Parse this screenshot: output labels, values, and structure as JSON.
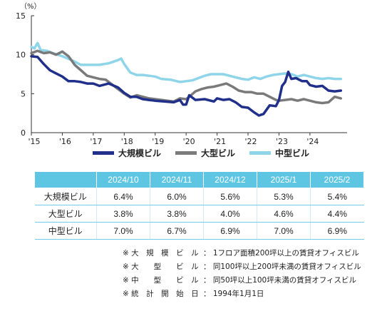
{
  "chart_data": {
    "type": "line",
    "unit_label": "（%）",
    "ylim": [
      0,
      15
    ],
    "yticks": [
      "0",
      "5",
      "10",
      "15"
    ],
    "xticks": [
      "'15",
      "'16",
      "'17",
      "'18",
      "'19",
      "'20",
      "'21",
      "'22",
      "'23",
      "'24"
    ],
    "x_start": 2015,
    "x_end": 2025.2,
    "grid": false,
    "legend_position": "bottom",
    "series": [
      {
        "name": "大規模ビル",
        "color": "#1f2f8a",
        "points": [
          [
            2015.0,
            9.8
          ],
          [
            2015.2,
            9.7
          ],
          [
            2015.4,
            8.8
          ],
          [
            2015.6,
            8.0
          ],
          [
            2015.8,
            7.6
          ],
          [
            2016.0,
            7.2
          ],
          [
            2016.2,
            6.6
          ],
          [
            2016.4,
            6.6
          ],
          [
            2016.6,
            6.5
          ],
          [
            2016.8,
            6.3
          ],
          [
            2017.0,
            6.3
          ],
          [
            2017.2,
            6.0
          ],
          [
            2017.5,
            6.3
          ],
          [
            2017.8,
            5.8
          ],
          [
            2018.0,
            5.1
          ],
          [
            2018.2,
            4.6
          ],
          [
            2018.4,
            4.6
          ],
          [
            2018.6,
            4.3
          ],
          [
            2018.8,
            4.2
          ],
          [
            2019.0,
            4.1
          ],
          [
            2019.3,
            4.0
          ],
          [
            2019.6,
            3.9
          ],
          [
            2019.8,
            4.2
          ],
          [
            2019.9,
            3.6
          ],
          [
            2020.0,
            3.6
          ],
          [
            2020.1,
            4.8
          ],
          [
            2020.3,
            4.2
          ],
          [
            2020.6,
            4.3
          ],
          [
            2020.9,
            4.0
          ],
          [
            2021.0,
            4.4
          ],
          [
            2021.2,
            4.2
          ],
          [
            2021.4,
            4.3
          ],
          [
            2021.6,
            3.9
          ],
          [
            2021.8,
            3.3
          ],
          [
            2022.0,
            3.2
          ],
          [
            2022.2,
            2.6
          ],
          [
            2022.35,
            2.2
          ],
          [
            2022.5,
            2.4
          ],
          [
            2022.7,
            3.5
          ],
          [
            2022.9,
            3.4
          ],
          [
            2023.0,
            4.2
          ],
          [
            2023.1,
            6.0
          ],
          [
            2023.2,
            6.5
          ],
          [
            2023.3,
            7.8
          ],
          [
            2023.4,
            6.9
          ],
          [
            2023.55,
            7.0
          ],
          [
            2023.75,
            6.6
          ],
          [
            2023.9,
            6.6
          ],
          [
            2024.0,
            6.1
          ],
          [
            2024.2,
            5.9
          ],
          [
            2024.4,
            6.0
          ],
          [
            2024.6,
            5.4
          ],
          [
            2024.8,
            5.3
          ],
          [
            2025.0,
            5.4
          ]
        ]
      },
      {
        "name": "大型ビル",
        "color": "#7a7a7a",
        "points": [
          [
            2015.0,
            10.2
          ],
          [
            2015.2,
            10.5
          ],
          [
            2015.4,
            10.2
          ],
          [
            2015.6,
            10.3
          ],
          [
            2015.8,
            10.0
          ],
          [
            2016.0,
            10.4
          ],
          [
            2016.2,
            9.8
          ],
          [
            2016.4,
            8.7
          ],
          [
            2016.6,
            8.0
          ],
          [
            2016.8,
            7.3
          ],
          [
            2017.0,
            7.1
          ],
          [
            2017.2,
            6.9
          ],
          [
            2017.4,
            6.8
          ],
          [
            2017.6,
            6.2
          ],
          [
            2017.8,
            5.6
          ],
          [
            2018.0,
            5.0
          ],
          [
            2018.2,
            4.5
          ],
          [
            2018.4,
            4.8
          ],
          [
            2018.6,
            4.6
          ],
          [
            2018.8,
            4.4
          ],
          [
            2019.0,
            4.3
          ],
          [
            2019.2,
            4.2
          ],
          [
            2019.4,
            4.1
          ],
          [
            2019.6,
            4.0
          ],
          [
            2019.8,
            4.4
          ],
          [
            2020.0,
            4.3
          ],
          [
            2020.1,
            4.6
          ],
          [
            2020.3,
            5.3
          ],
          [
            2020.5,
            5.6
          ],
          [
            2020.7,
            5.8
          ],
          [
            2020.9,
            5.9
          ],
          [
            2021.1,
            6.1
          ],
          [
            2021.3,
            6.3
          ],
          [
            2021.5,
            5.9
          ],
          [
            2021.7,
            5.4
          ],
          [
            2021.9,
            5.2
          ],
          [
            2022.1,
            5.2
          ],
          [
            2022.3,
            5.0
          ],
          [
            2022.5,
            5.0
          ],
          [
            2022.7,
            4.6
          ],
          [
            2022.9,
            4.2
          ],
          [
            2023.0,
            4.1
          ],
          [
            2023.2,
            4.2
          ],
          [
            2023.4,
            4.3
          ],
          [
            2023.6,
            4.1
          ],
          [
            2023.8,
            4.3
          ],
          [
            2024.0,
            4.1
          ],
          [
            2024.2,
            3.9
          ],
          [
            2024.4,
            3.8
          ],
          [
            2024.6,
            3.9
          ],
          [
            2024.8,
            4.6
          ],
          [
            2025.0,
            4.4
          ]
        ]
      },
      {
        "name": "中型ビル",
        "color": "#8fd5ea",
        "points": [
          [
            2015.0,
            11.0
          ],
          [
            2015.1,
            10.8
          ],
          [
            2015.2,
            11.5
          ],
          [
            2015.3,
            10.6
          ],
          [
            2015.5,
            10.5
          ],
          [
            2015.7,
            10.2
          ],
          [
            2016.0,
            9.8
          ],
          [
            2016.3,
            9.3
          ],
          [
            2016.6,
            8.7
          ],
          [
            2016.9,
            8.7
          ],
          [
            2017.2,
            8.7
          ],
          [
            2017.5,
            8.9
          ],
          [
            2017.8,
            9.3
          ],
          [
            2017.9,
            9.5
          ],
          [
            2018.0,
            8.8
          ],
          [
            2018.2,
            7.7
          ],
          [
            2018.4,
            7.4
          ],
          [
            2018.6,
            7.4
          ],
          [
            2018.8,
            7.3
          ],
          [
            2019.0,
            7.2
          ],
          [
            2019.2,
            6.9
          ],
          [
            2019.5,
            6.8
          ],
          [
            2019.8,
            6.5
          ],
          [
            2020.0,
            6.6
          ],
          [
            2020.2,
            6.7
          ],
          [
            2020.4,
            7.0
          ],
          [
            2020.6,
            7.3
          ],
          [
            2020.8,
            7.5
          ],
          [
            2021.0,
            7.5
          ],
          [
            2021.2,
            7.5
          ],
          [
            2021.4,
            7.3
          ],
          [
            2021.6,
            7.1
          ],
          [
            2021.8,
            6.9
          ],
          [
            2022.0,
            6.8
          ],
          [
            2022.2,
            7.1
          ],
          [
            2022.4,
            6.9
          ],
          [
            2022.6,
            7.2
          ],
          [
            2022.8,
            7.4
          ],
          [
            2023.0,
            7.5
          ],
          [
            2023.2,
            7.6
          ],
          [
            2023.4,
            7.5
          ],
          [
            2023.6,
            7.2
          ],
          [
            2023.8,
            7.4
          ],
          [
            2024.0,
            7.2
          ],
          [
            2024.2,
            7.0
          ],
          [
            2024.4,
            6.9
          ],
          [
            2024.6,
            7.0
          ],
          [
            2024.8,
            6.9
          ],
          [
            2025.0,
            6.9
          ]
        ]
      }
    ]
  },
  "table": {
    "columns": [
      "2024/10",
      "2024/11",
      "2024/12",
      "2025/1",
      "2025/2"
    ],
    "rows": [
      {
        "label": "大規模ビル",
        "values": [
          "6.4%",
          "6.0%",
          "5.6%",
          "5.3%",
          "5.4%"
        ]
      },
      {
        "label": "大型ビル",
        "values": [
          "3.8%",
          "3.8%",
          "4.0%",
          "4.6%",
          "4.4%"
        ]
      },
      {
        "label": "中型ビル",
        "values": [
          "7.0%",
          "6.7%",
          "6.9%",
          "7.0%",
          "6.9%"
        ]
      }
    ]
  },
  "notes": [
    {
      "key": "※ 大　規　模　ビ　ル",
      "value": "： 1フロア面積200坪以上の賃貸オフィスビル"
    },
    {
      "key": "※ 大　　型　　ビ　ル",
      "value": "： 同100坪以上200坪未満の賃貸オフィスビル"
    },
    {
      "key": "※ 中　　型　　ビ　ル",
      "value": "： 同50坪以上100坪未満の賃貸オフィスビル"
    },
    {
      "key": "※ 統　計　開　始　日",
      "value": "： 1994年1月1日"
    }
  ]
}
